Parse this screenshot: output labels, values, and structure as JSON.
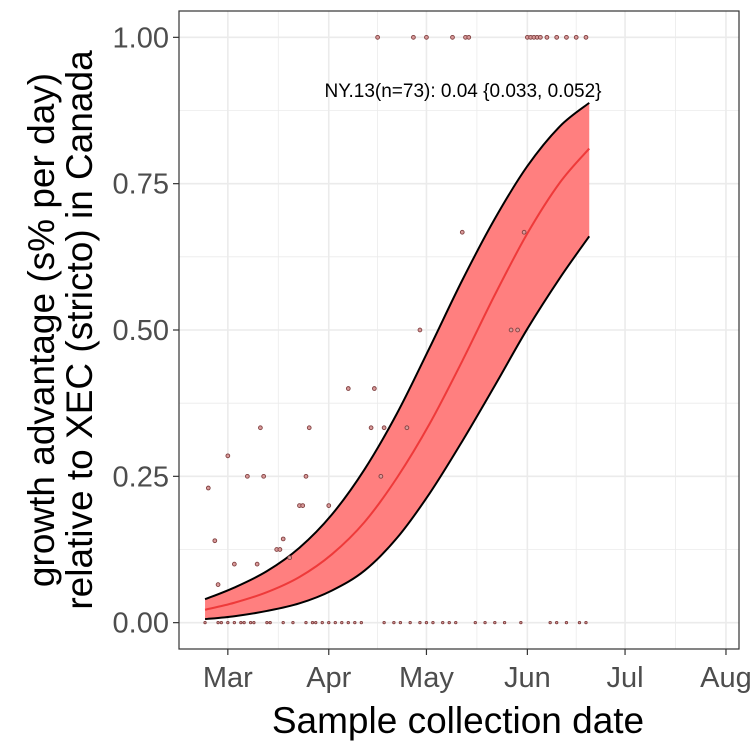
{
  "chart_data": {
    "type": "scatter",
    "title": "",
    "xlabel": "Sample collection date",
    "ylabel_line1": "growth advantage (s% per day)",
    "ylabel_line2": "relative to XEC (stricto) in Canada",
    "xlim": [
      "2024-02-15",
      "2024-08-05"
    ],
    "ylim": [
      -0.045,
      1.045
    ],
    "x_ticks": [
      {
        "date": "2024-03-01",
        "label": "Mar"
      },
      {
        "date": "2024-04-01",
        "label": "Apr"
      },
      {
        "date": "2024-05-01",
        "label": "May"
      },
      {
        "date": "2024-06-01",
        "label": "Jun"
      },
      {
        "date": "2024-07-01",
        "label": "Jul"
      },
      {
        "date": "2024-08-01",
        "label": "Aug"
      }
    ],
    "y_ticks": [
      {
        "value": 0.0,
        "label": "0.00"
      },
      {
        "value": 0.25,
        "label": "0.25"
      },
      {
        "value": 0.5,
        "label": "0.50"
      },
      {
        "value": 0.75,
        "label": "0.75"
      },
      {
        "value": 1.0,
        "label": "1.00"
      }
    ],
    "grid": true,
    "colors": {
      "ribbon": "#ff7f7f",
      "fit_line": "#ee3a3a",
      "points": "#7f3f3f",
      "grid": "#ebebeb",
      "panel_border": "#333333"
    },
    "annotation": "NY.13(n=73): 0.04 {0.033, 0.052}",
    "annotation_position": {
      "date": "2024-05-15",
      "value": 0.91
    },
    "fit": {
      "dates": [
        "2024-02-23",
        "2024-03-03",
        "2024-03-13",
        "2024-03-23",
        "2024-04-02",
        "2024-04-12",
        "2024-04-22",
        "2024-05-02",
        "2024-05-12",
        "2024-05-22",
        "2024-06-01",
        "2024-06-11",
        "2024-06-20"
      ],
      "mean": [
        0.022,
        0.034,
        0.052,
        0.078,
        0.117,
        0.172,
        0.248,
        0.34,
        0.447,
        0.56,
        0.665,
        0.752,
        0.81
      ],
      "lower": [
        0.006,
        0.011,
        0.02,
        0.033,
        0.055,
        0.089,
        0.145,
        0.221,
        0.31,
        0.405,
        0.502,
        0.589,
        0.66
      ],
      "upper": [
        0.04,
        0.06,
        0.088,
        0.128,
        0.185,
        0.262,
        0.358,
        0.47,
        0.585,
        0.69,
        0.78,
        0.848,
        0.888
      ]
    },
    "points": [
      {
        "date": "2024-02-23",
        "value": 0.0
      },
      {
        "date": "2024-02-24",
        "value": 0.23
      },
      {
        "date": "2024-02-26",
        "value": 0.14
      },
      {
        "date": "2024-02-27",
        "value": 0.065
      },
      {
        "date": "2024-02-27",
        "value": 0.0
      },
      {
        "date": "2024-02-28",
        "value": 0.0
      },
      {
        "date": "2024-03-01",
        "value": 0.285
      },
      {
        "date": "2024-03-01",
        "value": 0.0
      },
      {
        "date": "2024-03-03",
        "value": 0.1
      },
      {
        "date": "2024-03-03",
        "value": 0.0
      },
      {
        "date": "2024-03-05",
        "value": 0.0
      },
      {
        "date": "2024-03-06",
        "value": 0.0
      },
      {
        "date": "2024-03-07",
        "value": 0.25
      },
      {
        "date": "2024-03-08",
        "value": 0.0
      },
      {
        "date": "2024-03-09",
        "value": 0.0
      },
      {
        "date": "2024-03-10",
        "value": 0.1
      },
      {
        "date": "2024-03-11",
        "value": 0.333
      },
      {
        "date": "2024-03-12",
        "value": 0.25
      },
      {
        "date": "2024-03-13",
        "value": 0.0
      },
      {
        "date": "2024-03-14",
        "value": 0.0
      },
      {
        "date": "2024-03-16",
        "value": 0.125
      },
      {
        "date": "2024-03-17",
        "value": 0.125
      },
      {
        "date": "2024-03-18",
        "value": 0.143
      },
      {
        "date": "2024-03-18",
        "value": 0.0
      },
      {
        "date": "2024-03-20",
        "value": 0.111
      },
      {
        "date": "2024-03-21",
        "value": 0.0
      },
      {
        "date": "2024-03-23",
        "value": 0.2
      },
      {
        "date": "2024-03-24",
        "value": 0.2
      },
      {
        "date": "2024-03-25",
        "value": 0.25
      },
      {
        "date": "2024-03-25",
        "value": 0.0
      },
      {
        "date": "2024-03-26",
        "value": 0.333
      },
      {
        "date": "2024-03-27",
        "value": 0.0
      },
      {
        "date": "2024-03-28",
        "value": 0.0
      },
      {
        "date": "2024-03-30",
        "value": 0.0
      },
      {
        "date": "2024-04-01",
        "value": 0.2
      },
      {
        "date": "2024-04-01",
        "value": 0.0
      },
      {
        "date": "2024-04-03",
        "value": 0.0
      },
      {
        "date": "2024-04-05",
        "value": 0.0
      },
      {
        "date": "2024-04-07",
        "value": 0.4
      },
      {
        "date": "2024-04-07",
        "value": 0.0
      },
      {
        "date": "2024-04-09",
        "value": 0.0
      },
      {
        "date": "2024-04-11",
        "value": 0.0
      },
      {
        "date": "2024-04-14",
        "value": 0.333
      },
      {
        "date": "2024-04-15",
        "value": 0.4
      },
      {
        "date": "2024-04-16",
        "value": 1.0
      },
      {
        "date": "2024-04-17",
        "value": 0.25
      },
      {
        "date": "2024-04-18",
        "value": 0.333
      },
      {
        "date": "2024-04-18",
        "value": 0.0
      },
      {
        "date": "2024-04-21",
        "value": 0.0
      },
      {
        "date": "2024-04-23",
        "value": 0.0
      },
      {
        "date": "2024-04-25",
        "value": 0.333
      },
      {
        "date": "2024-04-26",
        "value": 0.0
      },
      {
        "date": "2024-04-27",
        "value": 1.0
      },
      {
        "date": "2024-04-29",
        "value": 0.5
      },
      {
        "date": "2024-04-29",
        "value": 0.0
      },
      {
        "date": "2024-05-01",
        "value": 1.0
      },
      {
        "date": "2024-05-01",
        "value": 0.0
      },
      {
        "date": "2024-05-03",
        "value": 0.0
      },
      {
        "date": "2024-05-06",
        "value": 0.0
      },
      {
        "date": "2024-05-08",
        "value": 0.0
      },
      {
        "date": "2024-05-09",
        "value": 1.0
      },
      {
        "date": "2024-05-10",
        "value": 0.0
      },
      {
        "date": "2024-05-12",
        "value": 0.667
      },
      {
        "date": "2024-05-13",
        "value": 1.0
      },
      {
        "date": "2024-05-14",
        "value": 1.0
      },
      {
        "date": "2024-05-16",
        "value": 0.0
      },
      {
        "date": "2024-05-19",
        "value": 0.0
      },
      {
        "date": "2024-05-22",
        "value": 0.0
      },
      {
        "date": "2024-05-25",
        "value": 0.0
      },
      {
        "date": "2024-05-27",
        "value": 0.5
      },
      {
        "date": "2024-05-29",
        "value": 0.5
      },
      {
        "date": "2024-05-30",
        "value": 0.0
      },
      {
        "date": "2024-05-31",
        "value": 0.667
      },
      {
        "date": "2024-06-01",
        "value": 1.0
      },
      {
        "date": "2024-06-02",
        "value": 1.0
      },
      {
        "date": "2024-06-03",
        "value": 1.0
      },
      {
        "date": "2024-06-04",
        "value": 1.0
      },
      {
        "date": "2024-06-05",
        "value": 1.0
      },
      {
        "date": "2024-06-07",
        "value": 1.0
      },
      {
        "date": "2024-06-08",
        "value": 0.0
      },
      {
        "date": "2024-06-10",
        "value": 1.0
      },
      {
        "date": "2024-06-10",
        "value": 0.0
      },
      {
        "date": "2024-06-13",
        "value": 1.0
      },
      {
        "date": "2024-06-13",
        "value": 0.0
      },
      {
        "date": "2024-06-16",
        "value": 1.0
      },
      {
        "date": "2024-06-17",
        "value": 0.0
      },
      {
        "date": "2024-06-19",
        "value": 1.0
      },
      {
        "date": "2024-06-19",
        "value": 0.0
      }
    ]
  }
}
